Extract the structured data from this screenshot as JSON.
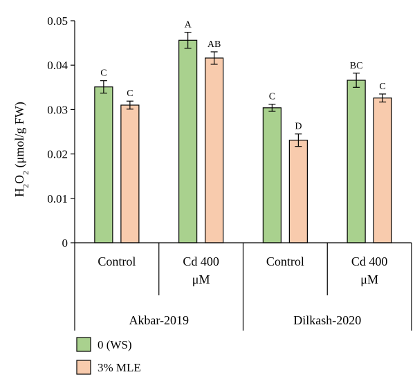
{
  "chart_data": {
    "type": "bar",
    "ylabel": {
      "prefix": "H",
      "sub1": "2",
      "mid": "O",
      "sub2": "2",
      "rest": " (μmol/g FW)"
    },
    "ylim": [
      0,
      0.05
    ],
    "yticks": [
      "0",
      "0.01",
      "0.02",
      "0.03",
      "0.04",
      "0.05"
    ],
    "yticks_values": [
      0,
      0.01,
      0.02,
      0.03,
      0.04,
      0.05
    ],
    "groups": [
      {
        "name": "Akbar-2019",
        "categories": [
          {
            "line1": "Control",
            "line2": ""
          },
          {
            "line1": "Cd 400",
            "line2": "μM"
          }
        ]
      },
      {
        "name": "Dilkash-2020",
        "categories": [
          {
            "line1": "Control",
            "line2": ""
          },
          {
            "line1": "Cd 400",
            "line2": "μM"
          }
        ]
      }
    ],
    "series": [
      {
        "name": "0 (WS)",
        "color": "#a9d18e",
        "values": [
          0.0351,
          0.0456,
          0.0304,
          0.0366
        ],
        "errors": [
          0.0014,
          0.0018,
          0.0008,
          0.0016
        ],
        "letters": [
          "C",
          "A",
          "C",
          "BC"
        ]
      },
      {
        "name": "3% MLE",
        "color": "#f8cbad",
        "values": [
          0.031,
          0.0416,
          0.0231,
          0.0326
        ],
        "errors": [
          0.0009,
          0.0014,
          0.0014,
          0.0009
        ],
        "letters": [
          "C",
          "AB",
          "D",
          "C"
        ]
      }
    ],
    "legend": "bottom-left",
    "grid": false
  }
}
